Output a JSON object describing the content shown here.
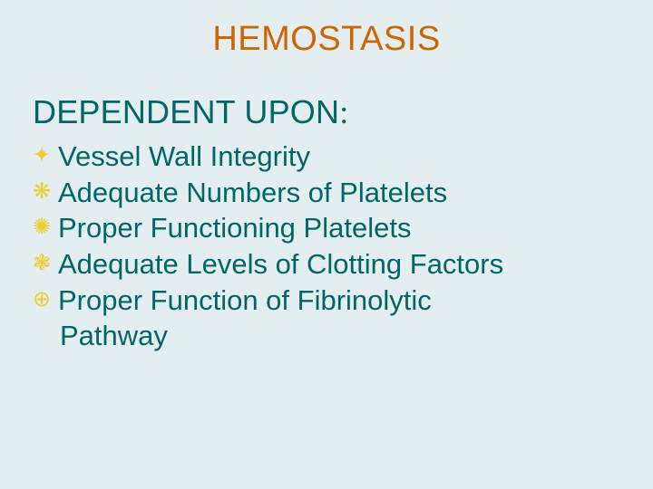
{
  "title": "HEMOSTASIS",
  "subhead": "DEPENDENT UPON",
  "subhead_colon": ":",
  "items": [
    {
      "bullet": "✦",
      "text": "Vessel Wall Integrity"
    },
    {
      "bullet": "❋",
      "text": "Adequate Numbers of Platelets"
    },
    {
      "bullet": "✺",
      "text": "Proper Functioning Platelets"
    },
    {
      "bullet": "❃",
      "text": "Adequate Levels of Clotting Factors"
    },
    {
      "bullet": "⊕",
      "text": "Proper Function of Fibrinolytic"
    }
  ],
  "wrap_line": "Pathway",
  "colors": {
    "background": "#e4eef0",
    "title": "#cc6600",
    "body_text": "#006666",
    "bullet": "#eecc33"
  },
  "typography": {
    "title_fontsize": 38,
    "subhead_fontsize": 36,
    "item_fontsize": 31,
    "font_family": "Arial"
  }
}
